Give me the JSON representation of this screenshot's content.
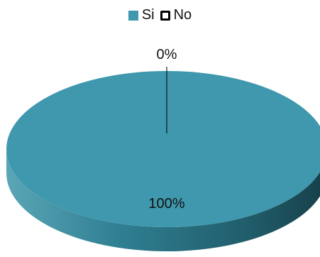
{
  "chart_data": {
    "type": "pie",
    "title": "",
    "categories": [
      "Si",
      "No"
    ],
    "values": [
      100,
      0
    ],
    "data_labels": [
      "100%",
      "0%"
    ],
    "colors": {
      "Si": "#3f98ad",
      "No": "#ffffff"
    },
    "legend": {
      "placement": "top",
      "entries": [
        "Si",
        "No"
      ]
    },
    "style": "3d"
  }
}
